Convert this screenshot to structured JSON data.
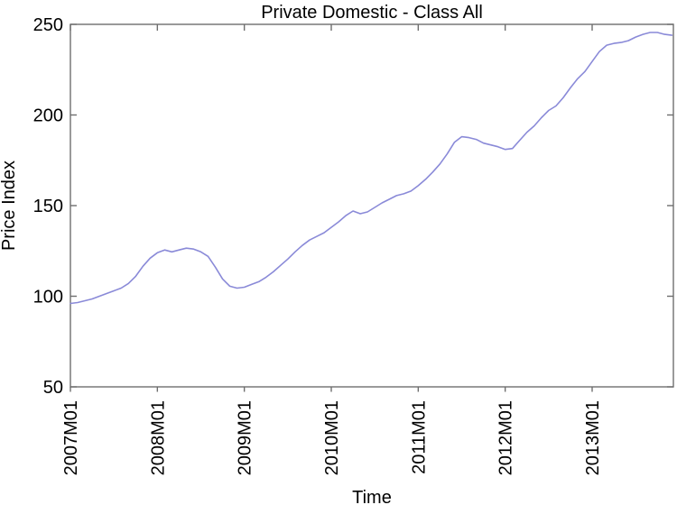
{
  "chart_data": {
    "type": "line",
    "title": "Private Domestic - Class All",
    "xlabel": "Time",
    "ylabel": "Price Index",
    "ylim": [
      50,
      250
    ],
    "yticks": [
      50,
      100,
      150,
      200,
      250
    ],
    "xtick_labels": [
      "2007M01",
      "2008M01",
      "2009M01",
      "2010M01",
      "2011M01",
      "2012M01",
      "2013M01"
    ],
    "x_start": "2007M01",
    "x_end": "2013M12",
    "x_frequency": "monthly",
    "grid": "off",
    "legend": "none",
    "line_color": "#8a8ad8",
    "axis_color": "#6e6e6e",
    "series": [
      {
        "name": "Price Index",
        "values": [
          96,
          96.5,
          97.5,
          98.5,
          100,
          101.5,
          103,
          104.5,
          107,
          111,
          116.5,
          121,
          124,
          125.5,
          124.5,
          125.5,
          126.5,
          126,
          124.5,
          122,
          116,
          109.5,
          105.5,
          104.5,
          105,
          106.5,
          108,
          110.5,
          113.5,
          117,
          120.5,
          124.5,
          128,
          131,
          133,
          135,
          138,
          141,
          144.5,
          147,
          145.5,
          146.5,
          149,
          151.5,
          153.5,
          155.5,
          156.5,
          158,
          161,
          164.5,
          168.5,
          173,
          178.5,
          185,
          188,
          187.5,
          186.5,
          184.5,
          183.5,
          182.5,
          181,
          181.5,
          186,
          190.5,
          194,
          198.5,
          202.5,
          205,
          209.5,
          215,
          220,
          224,
          229.5,
          235,
          238.5,
          239.5,
          240,
          241,
          243,
          244.5,
          245.5,
          245.5,
          244.5,
          244
        ]
      }
    ]
  }
}
